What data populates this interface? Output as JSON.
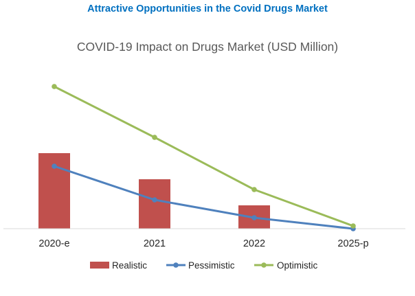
{
  "header": {
    "title": "Attractive Opportunities in the Covid Drugs Market",
    "title_color": "#0070C0"
  },
  "chart_data": {
    "type": "bar",
    "title": "COVID-19 Impact on Drugs Market (USD Million)",
    "title_color": "#595959",
    "categories": [
      "2020-e",
      "2021",
      "2022",
      "2025-p"
    ],
    "xlabel": "",
    "ylabel": "",
    "ylim": [
      0,
      215
    ],
    "grid": false,
    "legend": "bottom",
    "series": [
      {
        "name": "Realistic",
        "kind": "bar",
        "color": "#C0504D",
        "values": [
          110,
          72,
          34,
          null
        ]
      },
      {
        "name": "Pessimistic",
        "kind": "line",
        "color": "#4F81BD",
        "values": [
          91,
          42,
          16,
          0
        ]
      },
      {
        "name": "Optimistic",
        "kind": "line",
        "color": "#9BBB59",
        "values": [
          207,
          133,
          57,
          4
        ]
      }
    ]
  }
}
